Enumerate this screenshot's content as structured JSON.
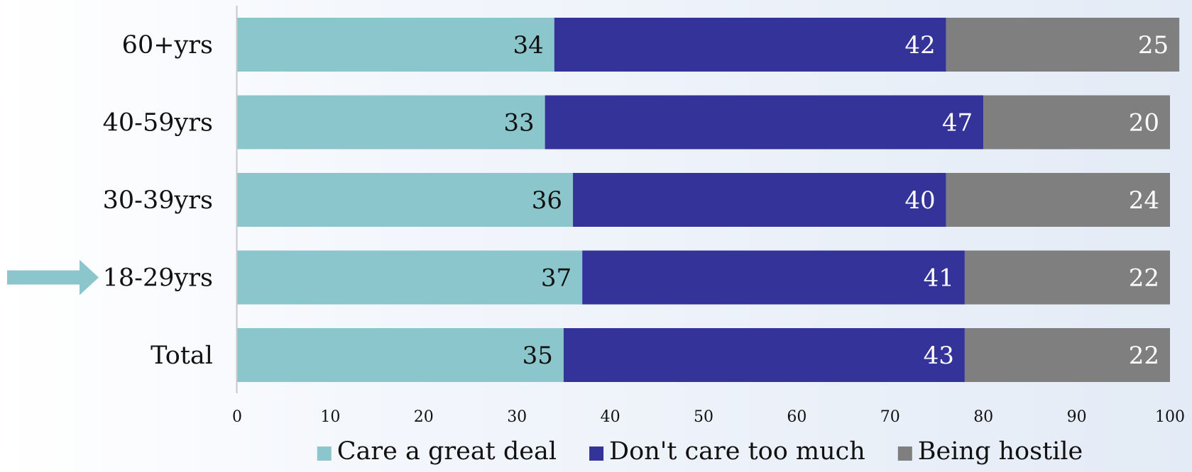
{
  "chart_data": {
    "type": "bar",
    "orientation": "horizontal",
    "stacked": true,
    "categories": [
      "60+yrs",
      "40-59yrs",
      "30-39yrs",
      "18-29yrs",
      "Total"
    ],
    "series": [
      {
        "name": "Care a great deal",
        "values": [
          34,
          33,
          36,
          37,
          35
        ],
        "color": "#8bc6cc"
      },
      {
        "name": "Don't care too much",
        "values": [
          42,
          47,
          40,
          41,
          43
        ],
        "color": "#343399"
      },
      {
        "name": "Being hostile",
        "values": [
          25,
          20,
          24,
          22,
          22
        ],
        "color": "#7f7f7f"
      }
    ],
    "xlim": [
      0,
      100
    ],
    "xticks": [
      0,
      10,
      20,
      30,
      40,
      50,
      60,
      70,
      80,
      90,
      100
    ],
    "grid": false,
    "legend_position": "bottom",
    "highlighted_category": "18-29yrs",
    "highlight_arrow_color": "#8bc6cc",
    "label_colors": {
      "Care a great deal": "#111111",
      "Don't care too much": "#ffffff",
      "Being hostile": "#ffffff"
    }
  }
}
